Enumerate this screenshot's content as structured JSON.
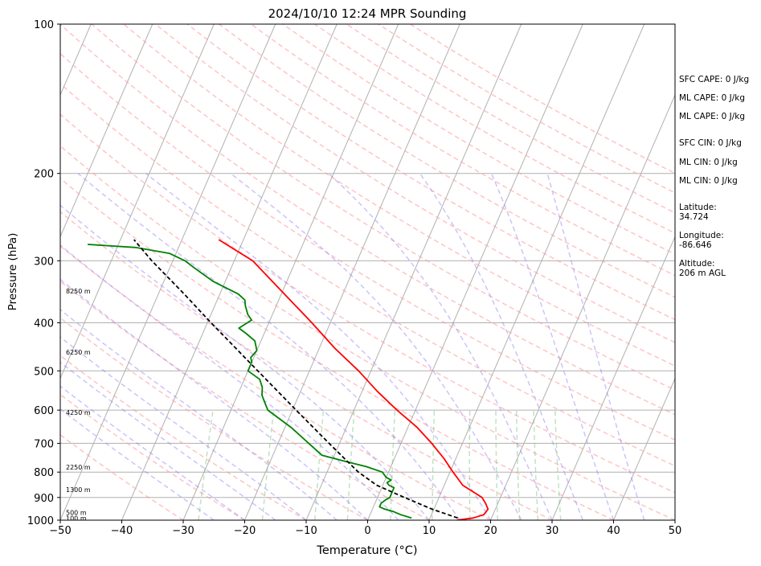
{
  "chart_data": {
    "type": "line",
    "subtype": "skew-t log-p sounding",
    "title": "2024/10/10 12:24 MPR Sounding",
    "xlabel": "Temperature (°C)",
    "ylabel": "Pressure (hPa)",
    "xlim": [
      -50,
      50
    ],
    "ylim": [
      1000,
      100
    ],
    "y_scale": "log",
    "grid": true,
    "x_ticks": [
      -50,
      -40,
      -30,
      -20,
      -10,
      0,
      10,
      20,
      30,
      40,
      50
    ],
    "y_ticks": [
      1000,
      900,
      800,
      700,
      600,
      500,
      400,
      300,
      200,
      100
    ],
    "height_labels": [
      {
        "p": 990,
        "label": "100 m"
      },
      {
        "p": 965,
        "label": "500 m"
      },
      {
        "p": 868,
        "label": "1300 m"
      },
      {
        "p": 782,
        "label": "2250 m"
      },
      {
        "p": 606,
        "label": "4250 m"
      },
      {
        "p": 458,
        "label": "6250 m"
      },
      {
        "p": 345,
        "label": "8250 m"
      }
    ],
    "series": [
      {
        "color": "#ff0000",
        "points": [
          [
            1000,
            14.5
          ],
          [
            990,
            17
          ],
          [
            975,
            18.5
          ],
          [
            950,
            18.8
          ],
          [
            925,
            18
          ],
          [
            900,
            17
          ],
          [
            850,
            13
          ],
          [
            800,
            10.5
          ],
          [
            750,
            8
          ],
          [
            700,
            5
          ],
          [
            650,
            1.5
          ],
          [
            600,
            -3
          ],
          [
            550,
            -7.5
          ],
          [
            500,
            -12
          ],
          [
            450,
            -17.5
          ],
          [
            400,
            -23
          ],
          [
            350,
            -29.5
          ],
          [
            300,
            -37
          ],
          [
            272,
            -44
          ]
        ]
      },
      {
        "color": "#008000",
        "points": [
          [
            990,
            7
          ],
          [
            975,
            5
          ],
          [
            960,
            3.5
          ],
          [
            950,
            2
          ],
          [
            940,
            1
          ],
          [
            925,
            1
          ],
          [
            910,
            1.5
          ],
          [
            900,
            2
          ],
          [
            880,
            2
          ],
          [
            860,
            2
          ],
          [
            850,
            1
          ],
          [
            840,
            0.5
          ],
          [
            830,
            1
          ],
          [
            820,
            0
          ],
          [
            800,
            -1
          ],
          [
            780,
            -4
          ],
          [
            760,
            -8
          ],
          [
            740,
            -12
          ],
          [
            700,
            -15
          ],
          [
            650,
            -19
          ],
          [
            600,
            -24
          ],
          [
            580,
            -25
          ],
          [
            560,
            -26
          ],
          [
            540,
            -26.5
          ],
          [
            520,
            -27.5
          ],
          [
            500,
            -30
          ],
          [
            480,
            -30
          ],
          [
            470,
            -30.5
          ],
          [
            455,
            -30
          ],
          [
            435,
            -31
          ],
          [
            420,
            -33
          ],
          [
            410,
            -34.5
          ],
          [
            395,
            -33
          ],
          [
            385,
            -34
          ],
          [
            370,
            -35
          ],
          [
            360,
            -35.5
          ],
          [
            350,
            -37
          ],
          [
            330,
            -42
          ],
          [
            310,
            -46
          ],
          [
            300,
            -48
          ],
          [
            290,
            -51
          ],
          [
            282,
            -57
          ],
          [
            278,
            -65
          ]
        ]
      },
      {
        "color": "#000000",
        "dash": true,
        "points": [
          [
            990,
            14.5
          ],
          [
            950,
            9.7
          ],
          [
            900,
            4.4
          ],
          [
            850,
            -1
          ],
          [
            800,
            -4.9
          ],
          [
            750,
            -8.2
          ],
          [
            700,
            -11.7
          ],
          [
            650,
            -15.4
          ],
          [
            600,
            -19.4
          ],
          [
            550,
            -23.7
          ],
          [
            500,
            -28.4
          ],
          [
            450,
            -33.6
          ],
          [
            400,
            -39.4
          ],
          [
            350,
            -45.8
          ],
          [
            300,
            -53.4
          ],
          [
            272,
            -57.8
          ]
        ]
      }
    ],
    "stats": [
      "SFC CAPE: 0 J/kg",
      "ML CAPE: 0 J/kg",
      "ML CAPE: 0 J/kg",
      "SFC CIN: 0 J/kg",
      "ML CIN: 0 J/kg",
      "ML CIN: 0 J/kg"
    ],
    "location": {
      "latitude_label": "Latitude:",
      "latitude": "34.724",
      "longitude_label": "Longitude:",
      "longitude": "-86.646",
      "altitude_label": "Altitude:",
      "altitude": "206 m AGL"
    }
  }
}
